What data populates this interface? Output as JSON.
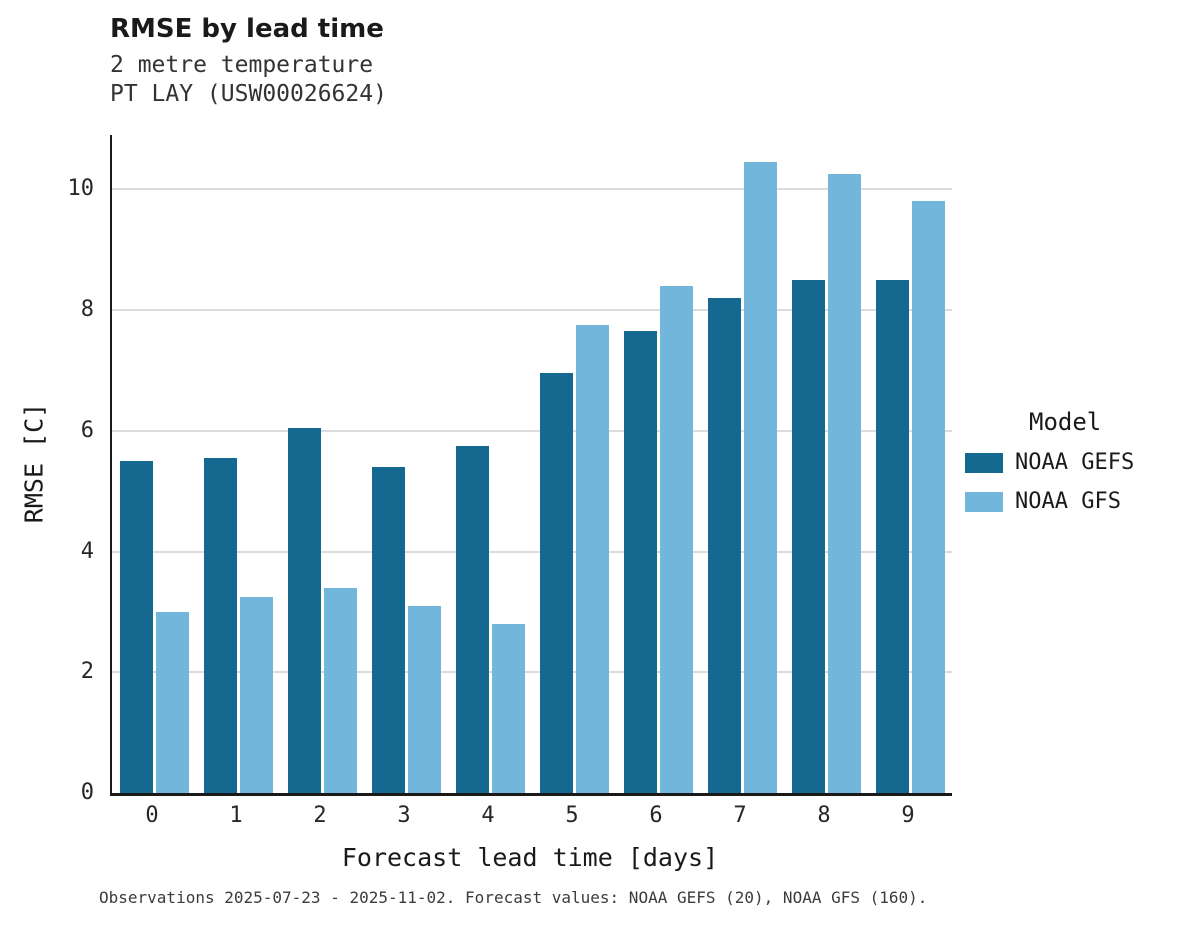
{
  "title": "RMSE by lead time",
  "subtitle1": "2 metre temperature",
  "subtitle2": "PT LAY (USW00026624)",
  "footer": "Observations 2025-07-23 - 2025-11-02. Forecast values: NOAA GEFS (20), NOAA GFS (160).",
  "legend": {
    "title": "Model",
    "items": [
      {
        "label": "NOAA GEFS",
        "color": "#15688F"
      },
      {
        "label": "NOAA GFS",
        "color": "#73B6DC"
      }
    ]
  },
  "colors": {
    "gefs": "#15688F",
    "gfs": "#73B6DC",
    "grid": "#dcdcdc",
    "axis": "#1a1a1a"
  },
  "chart_data": {
    "type": "bar",
    "title": "RMSE by lead time",
    "subtitle": [
      "2 metre temperature",
      "PT LAY (USW00026624)"
    ],
    "xlabel": "Forecast lead time [days]",
    "ylabel": "RMSE [C]",
    "categories": [
      "0",
      "1",
      "2",
      "3",
      "4",
      "5",
      "6",
      "7",
      "8",
      "9"
    ],
    "series": [
      {
        "name": "NOAA GEFS",
        "color": "#15688F",
        "values": [
          5.5,
          5.55,
          6.05,
          5.4,
          5.75,
          6.95,
          7.65,
          8.2,
          8.5,
          8.5
        ]
      },
      {
        "name": "NOAA GFS",
        "color": "#73B6DC",
        "values": [
          3.0,
          3.25,
          3.4,
          3.1,
          2.8,
          7.75,
          8.4,
          10.45,
          10.25,
          9.8
        ]
      }
    ],
    "ylim": [
      0,
      10.9
    ],
    "yticks": [
      0,
      2,
      4,
      6,
      8,
      10
    ],
    "grid": true,
    "legend_title": "Model",
    "legend_position": "right",
    "caption": "Observations 2025-07-23 - 2025-11-02. Forecast values: NOAA GEFS (20), NOAA GFS (160)."
  }
}
